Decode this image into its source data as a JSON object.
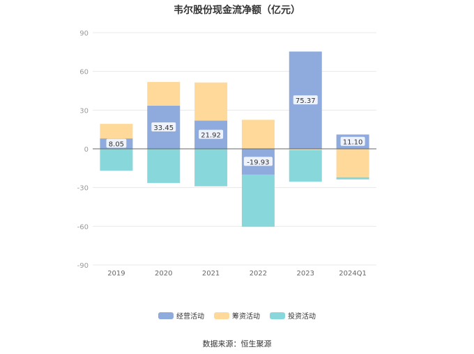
{
  "chart_data": {
    "type": "bar",
    "stacked": true,
    "title": "韦尔股份现金流净额（亿元）",
    "categories": [
      "2019",
      "2020",
      "2021",
      "2022",
      "2023",
      "2024Q1"
    ],
    "ylim": [
      -90,
      90
    ],
    "yticks": [
      90,
      60,
      30,
      0,
      -30,
      -60,
      -90
    ],
    "grid": true,
    "legend_position": "bottom",
    "series": [
      {
        "name": "经营活动",
        "color": "#8faadc",
        "values": [
          8.05,
          33.45,
          21.92,
          -19.93,
          75.37,
          11.1
        ],
        "labels": [
          "8.05",
          "33.45",
          "21.92",
          "-19.93",
          "75.37",
          "11.10"
        ]
      },
      {
        "name": "筹资活动",
        "color": "#ffd999",
        "values": [
          11.3,
          18.4,
          29.5,
          22.5,
          -1.0,
          -22.0
        ]
      },
      {
        "name": "投资活动",
        "color": "#88d8db",
        "values": [
          -17.0,
          -26.5,
          -29.0,
          -40.5,
          -24.5,
          -1.7
        ]
      }
    ],
    "source": "数据来源：恒生聚源"
  }
}
